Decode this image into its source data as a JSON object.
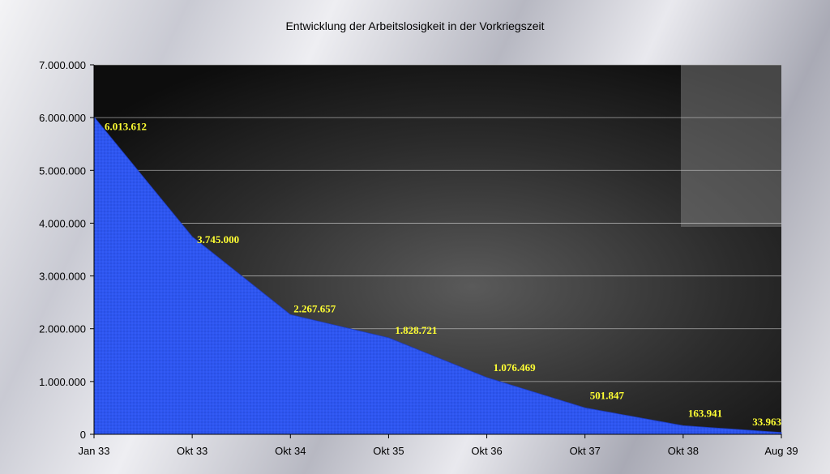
{
  "chart_data": {
    "type": "area",
    "title": "Entwicklung der Arbeitslosigkeit in der Vorkriegszeit",
    "categories": [
      "Jan 33",
      "Okt 33",
      "Okt 34",
      "Okt 35",
      "Okt 36",
      "Okt 37",
      "Okt 38",
      "Aug 39"
    ],
    "values": [
      6013612,
      3745000,
      2267657,
      1828721,
      1076469,
      501847,
      163941,
      33963
    ],
    "data_labels": [
      "6.013.612",
      "3.745.000",
      "2.267.657",
      "1.828.721",
      "1.076.469",
      "501.847",
      "163.941",
      "33.963"
    ],
    "yticks": [
      "0",
      "1.000.000",
      "2.000.000",
      "3.000.000",
      "4.000.000",
      "5.000.000",
      "6.000.000",
      "7.000.000"
    ],
    "ylim": [
      0,
      7000000
    ],
    "grid": true,
    "colors": {
      "area": "#2d56f0",
      "label": "#ffff33",
      "plot_background": "#151515"
    }
  }
}
